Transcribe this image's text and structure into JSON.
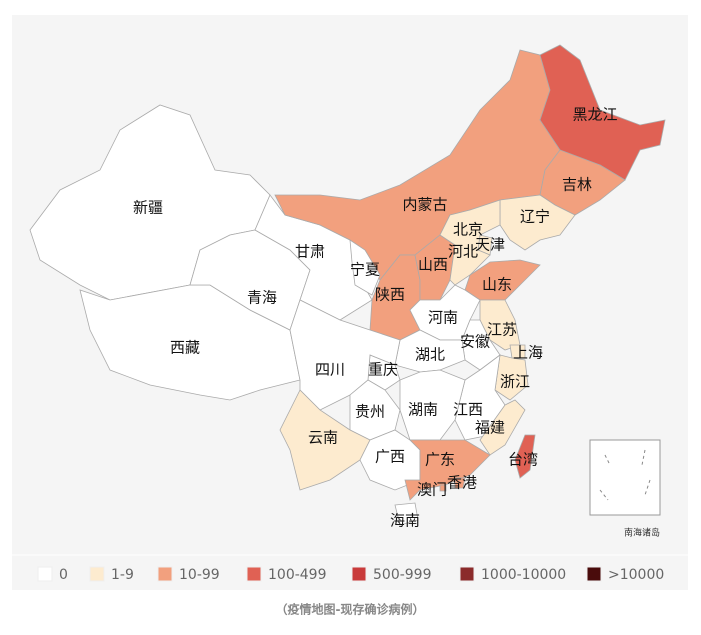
{
  "map": {
    "regions": [
      {
        "name": "新疆",
        "color": "#ffffff"
      },
      {
        "name": "西藏",
        "color": "#ffffff"
      },
      {
        "name": "青海",
        "color": "#ffffff"
      },
      {
        "name": "甘肃",
        "color": "#ffffff"
      },
      {
        "name": "内蒙古",
        "color": "#f2a07e"
      },
      {
        "name": "宁夏",
        "color": "#ffffff"
      },
      {
        "name": "陕西",
        "color": "#f2a07e"
      },
      {
        "name": "山西",
        "color": "#f2a07e"
      },
      {
        "name": "黑龙江",
        "color": "#e06154"
      },
      {
        "name": "吉林",
        "color": "#f2a07e"
      },
      {
        "name": "辽宁",
        "color": "#fdebcf"
      },
      {
        "name": "北京",
        "color": "#fdebcf"
      },
      {
        "name": "天津",
        "color": "#fdebcf"
      },
      {
        "name": "河北",
        "color": "#fdebcf"
      },
      {
        "name": "山东",
        "color": "#f2a07e"
      },
      {
        "name": "河南",
        "color": "#ffffff"
      },
      {
        "name": "江苏",
        "color": "#fdebcf"
      },
      {
        "name": "安徽",
        "color": "#ffffff"
      },
      {
        "name": "上海",
        "color": "#fdebcf"
      },
      {
        "name": "湖北",
        "color": "#ffffff"
      },
      {
        "name": "重庆",
        "color": "#ffffff"
      },
      {
        "name": "四川",
        "color": "#ffffff"
      },
      {
        "name": "浙江",
        "color": "#fdebcf"
      },
      {
        "name": "江西",
        "color": "#ffffff"
      },
      {
        "name": "湖南",
        "color": "#ffffff"
      },
      {
        "name": "贵州",
        "color": "#ffffff"
      },
      {
        "name": "福建",
        "color": "#fdebcf"
      },
      {
        "name": "云南",
        "color": "#fdebcf"
      },
      {
        "name": "广西",
        "color": "#ffffff"
      },
      {
        "name": "广东",
        "color": "#f2a07e"
      },
      {
        "name": "台湾",
        "color": "#e06154"
      },
      {
        "name": "香港",
        "color": "#f2a07e"
      },
      {
        "name": "澳门",
        "color": "#f2a07e"
      },
      {
        "name": "海南",
        "color": "#ffffff"
      }
    ],
    "inset_label": "南海诸岛",
    "legend": [
      {
        "label": "0",
        "color": "#ffffff"
      },
      {
        "label": "1-9",
        "color": "#fdebcf"
      },
      {
        "label": "10-99",
        "color": "#f2a07e"
      },
      {
        "label": "100-499",
        "color": "#e06154"
      },
      {
        "label": "500-999",
        "color": "#c93b3b"
      },
      {
        "label": "1000-10000",
        "color": "#8b2b2b"
      },
      {
        "label": ">10000",
        "color": "#4a0c0c"
      }
    ]
  },
  "caption": "（疫情地图-现存确诊病例）"
}
